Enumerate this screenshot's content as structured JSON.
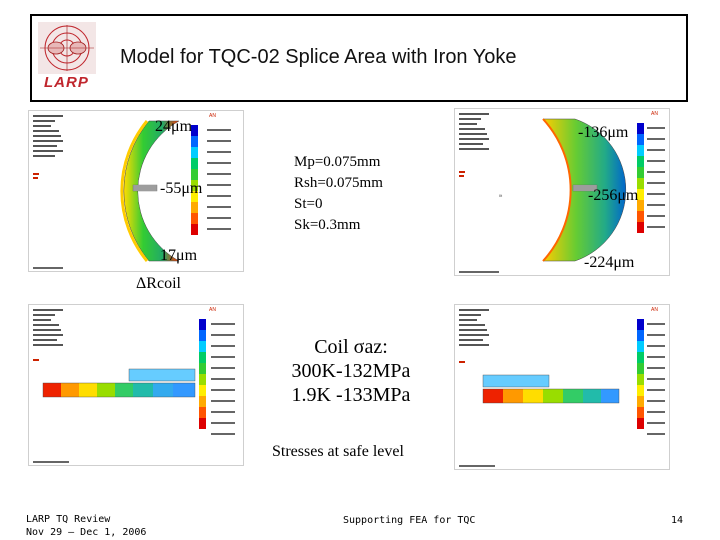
{
  "slide": {
    "title": "Model for TQC-02 Splice Area with Iron Yoke",
    "logo_text": "LARP"
  },
  "left_top_labels": {
    "top": "24μm",
    "mid": "-55μm",
    "bottom": "17μm"
  },
  "delta_label": "ΔRcoil",
  "params": [
    "Mp=0.075mm",
    "Rsh=0.075mm",
    "St=0",
    "Sk=0.3mm"
  ],
  "right_top_labels": {
    "top": "-136μm",
    "mid": "-256μm",
    "bottom": "-224μm"
  },
  "coil": {
    "line1": "Coil σaz:",
    "line2": "300K-132MPa",
    "line3": "1.9K -133MPa"
  },
  "stress_note": "Stresses at safe level",
  "footer": {
    "left_line1": "LARP TQ Review",
    "left_line2": "Nov 29 – Dec 1, 2006",
    "center": "Supporting FEA for TQC",
    "page": "14"
  },
  "colors": {
    "logo_red": "#c0262d",
    "ansys_red": "#cc2200"
  }
}
